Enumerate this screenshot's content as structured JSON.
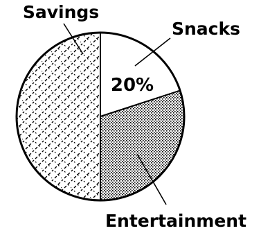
{
  "chart_data": {
    "type": "pie",
    "title": "",
    "slices": [
      {
        "label": "Snacks",
        "value": 20,
        "value_label": "20%",
        "pattern": "blank"
      },
      {
        "label": "Entertainment",
        "value": 30,
        "value_label": "",
        "pattern": "dots"
      },
      {
        "label": "Savings",
        "value": 50,
        "value_label": "",
        "pattern": "diamond-hatch"
      }
    ],
    "start_angle": "12 o'clock",
    "direction": "clockwise",
    "legend": "none (labels with leader lines)"
  },
  "colors": {
    "ink": "#000000",
    "background": "#ffffff"
  }
}
